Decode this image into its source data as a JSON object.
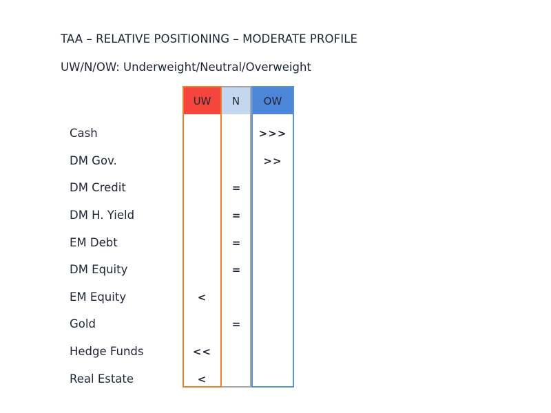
{
  "title": "TAA – RELATIVE POSITIONING – MODERATE PROFILE",
  "subtitle": "UW/N/OW: Underweight/Neutral/Overweight",
  "columns": {
    "uw": "UW",
    "n": "N",
    "ow": "OW"
  },
  "colors": {
    "uw_header": "#f4463d",
    "uw_border": "#ef7d2e",
    "n_header": "#c5d7ee",
    "n_border": "#a6a6a6",
    "ow_header": "#4d86d8",
    "ow_border": "#5b93d6"
  },
  "rows": [
    {
      "label": "Cash",
      "uw": "",
      "n": "",
      "ow": ">>>"
    },
    {
      "label": "DM Gov.",
      "uw": "",
      "n": "",
      "ow": ">>"
    },
    {
      "label": "DM Credit",
      "uw": "",
      "n": "=",
      "ow": ""
    },
    {
      "label": "DM H. Yield",
      "uw": "",
      "n": "=",
      "ow": ""
    },
    {
      "label": "EM Debt",
      "uw": "",
      "n": "=",
      "ow": ""
    },
    {
      "label": "DM Equity",
      "uw": "",
      "n": "=",
      "ow": ""
    },
    {
      "label": "EM Equity",
      "uw": "<",
      "n": "",
      "ow": ""
    },
    {
      "label": "Gold",
      "uw": "",
      "n": "=",
      "ow": ""
    },
    {
      "label": "Hedge Funds",
      "uw": "<<",
      "n": "",
      "ow": ""
    },
    {
      "label": "Real Estate",
      "uw": "<",
      "n": "",
      "ow": ""
    }
  ]
}
